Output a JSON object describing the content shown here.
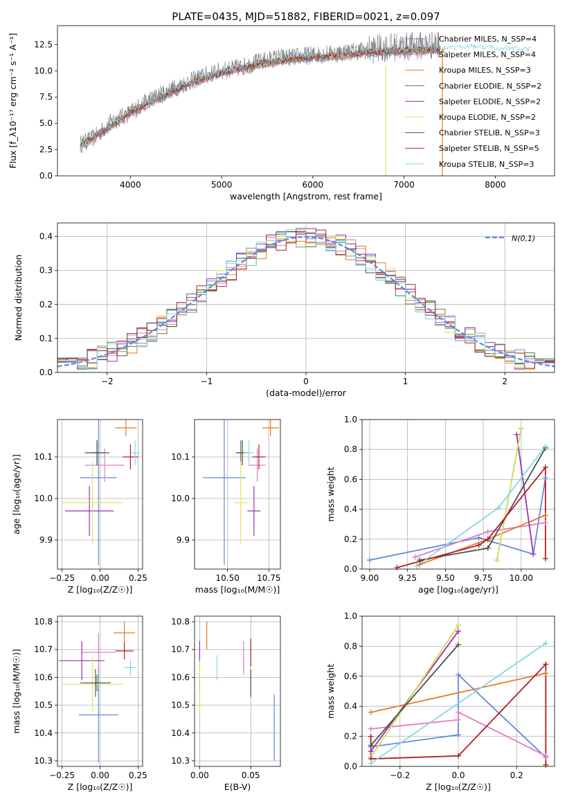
{
  "chart_data": [
    {
      "id": "spectrum",
      "type": "line",
      "title": "PLATE=0435, MJD=51882, FIBERID=0021, z=0.097",
      "xlabel": "wavelength [Angstrom, rest frame]",
      "ylabel": "Flux [f_λ10⁻¹⁷ erg cm⁻² s⁻¹ A⁻¹]",
      "xlim": [
        3200,
        8650
      ],
      "ylim": [
        0,
        14.3
      ],
      "xticks": [
        4000,
        5000,
        6000,
        7000,
        8000
      ],
      "yticks": [
        0.0,
        2.5,
        5.0,
        7.5,
        10.0,
        12.5
      ],
      "legend_position": "top-right",
      "observed": {
        "color": "#808080",
        "x": [
          3450,
          3600,
          3800,
          4000,
          4200,
          4400,
          4600,
          4800,
          5000,
          5200,
          5400,
          5600,
          5800,
          6000,
          6200,
          6400,
          6600,
          6800,
          7000,
          7200,
          7400
        ],
        "y": [
          3.0,
          3.6,
          5.2,
          6.0,
          7.2,
          8.0,
          8.8,
          9.5,
          10.0,
          10.3,
          10.8,
          11.2,
          11.3,
          11.5,
          11.6,
          11.8,
          12.0,
          12.2,
          12.3,
          12.4,
          12.5
        ]
      },
      "series": [
        {
          "name": "Chabrier MILES, N_SSP=4",
          "color": "#6189da",
          "n_ssp": 4
        },
        {
          "name": "Salpeter MILES, N_SSP=4",
          "color": "#e37bbd",
          "n_ssp": 4
        },
        {
          "name": "Kroupa MILES, N_SSP=3",
          "color": "#e07b22",
          "n_ssp": 3
        },
        {
          "name": "Chabrier ELODIE, N_SSP=2",
          "color": "#4e7a42",
          "n_ssp": 2
        },
        {
          "name": "Salpeter ELODIE, N_SSP=2",
          "color": "#9b2fae",
          "n_ssp": 2
        },
        {
          "name": "Kroupa ELODIE, N_SSP=2",
          "color": "#dbe65a",
          "n_ssp": 2
        },
        {
          "name": "Chabrier STELIB, N_SSP=3",
          "color": "#4d4d4d",
          "n_ssp": 3
        },
        {
          "name": "Salpeter STELIB, N_SSP=5",
          "color": "#b01e22",
          "n_ssp": 5
        },
        {
          "name": "Kroupa STELIB, N_SSP=3",
          "color": "#7fd8e3",
          "n_ssp": 3
        }
      ],
      "continuum": {
        "x": [
          3450,
          3700,
          4000,
          4300,
          4600,
          5000,
          5400,
          5800,
          6200,
          6600,
          7000,
          7400,
          7800,
          8200,
          8400
        ],
        "y": [
          3.0,
          4.2,
          6.0,
          7.3,
          8.6,
          9.8,
          10.6,
          11.1,
          11.4,
          11.7,
          11.9,
          12.0,
          12.1,
          11.9,
          11.8
        ]
      }
    },
    {
      "id": "residuals",
      "type": "histogram",
      "xlabel": "(data-model)/error",
      "ylabel": "Normed distribution",
      "xlim": [
        -2.5,
        2.5
      ],
      "ylim": [
        0,
        0.44
      ],
      "xticks": [
        -2,
        -1,
        0,
        1,
        2
      ],
      "yticks": [
        0.0,
        0.1,
        0.2,
        0.3,
        0.4
      ],
      "grid": true,
      "bin_width": 0.1,
      "legend": "N(0,1)",
      "legend_position": "top-right",
      "gaussian": {
        "mean": 0,
        "sigma": 1,
        "color": "#6189da"
      }
    },
    {
      "id": "age-vs-Z",
      "type": "errorbar",
      "xlabel": "Z [log₁₀(Z/Z☉)]",
      "ylabel": "age  [log₁₀(age/yr)]",
      "xlim": [
        -0.28,
        0.28
      ],
      "ylim": [
        9.83,
        10.19
      ],
      "xticks": [
        -0.25,
        0.0,
        0.25
      ],
      "yticks": [
        9.9,
        10.0,
        10.1
      ],
      "grid": true,
      "points": [
        {
          "color": "#6189da",
          "x": -0.01,
          "xerr": 0.12,
          "y": 10.05,
          "yerr": 0.21
        },
        {
          "color": "#e37bbd",
          "x": 0.03,
          "xerr": 0.13,
          "y": 10.08,
          "yerr": 0.04
        },
        {
          "color": "#e07b22",
          "x": 0.17,
          "xerr": 0.07,
          "y": 10.17,
          "yerr": 0.02
        },
        {
          "color": "#4e7a42",
          "x": -0.02,
          "xerr": 0.04,
          "y": 10.11,
          "yerr": 0.03
        },
        {
          "color": "#9b2fae",
          "x": -0.07,
          "xerr": 0.16,
          "y": 9.97,
          "yerr": 0.06
        },
        {
          "color": "#dbe65a",
          "x": -0.05,
          "xerr": 0.2,
          "y": 9.99,
          "yerr": 0.1
        },
        {
          "color": "#4d4d4d",
          "x": -0.02,
          "xerr": 0.08,
          "y": 10.11,
          "yerr": 0.03
        },
        {
          "color": "#b01e22",
          "x": 0.2,
          "xerr": 0.05,
          "y": 10.1,
          "yerr": 0.03
        },
        {
          "color": "#7fd8e3",
          "x": 0.23,
          "xerr": 0.03,
          "y": 10.11,
          "yerr": 0.03
        }
      ]
    },
    {
      "id": "age-vs-mass",
      "type": "errorbar",
      "xlabel": "mass [log₁₀(M/M☉)]",
      "ylabel": "",
      "xlim": [
        10.3,
        10.82
      ],
      "ylim": [
        9.83,
        10.19
      ],
      "xticks": [
        10.5,
        10.75
      ],
      "yticks": [
        9.9,
        10.0,
        10.1
      ],
      "grid": true,
      "points": [
        {
          "color": "#6189da",
          "x": 10.48,
          "xerr": 0.13,
          "y": 10.05,
          "yerr": 0.21
        },
        {
          "color": "#e37bbd",
          "x": 10.68,
          "xerr": 0.05,
          "y": 10.08,
          "yerr": 0.04
        },
        {
          "color": "#e07b22",
          "x": 10.76,
          "xerr": 0.05,
          "y": 10.17,
          "yerr": 0.02
        },
        {
          "color": "#4e7a42",
          "x": 10.58,
          "xerr": 0.02,
          "y": 10.11,
          "yerr": 0.03
        },
        {
          "color": "#9b2fae",
          "x": 10.66,
          "xerr": 0.04,
          "y": 9.97,
          "yerr": 0.06
        },
        {
          "color": "#dbe65a",
          "x": 10.58,
          "xerr": 0.04,
          "y": 9.99,
          "yerr": 0.1
        },
        {
          "color": "#4d4d4d",
          "x": 10.59,
          "xerr": 0.04,
          "y": 10.11,
          "yerr": 0.03
        },
        {
          "color": "#b01e22",
          "x": 10.69,
          "xerr": 0.04,
          "y": 10.1,
          "yerr": 0.03
        },
        {
          "color": "#7fd8e3",
          "x": 10.63,
          "xerr": 0.03,
          "y": 10.11,
          "yerr": 0.03
        }
      ]
    },
    {
      "id": "weight-vs-age",
      "type": "line",
      "xlabel": "age  [log₁₀(age/yr)]",
      "ylabel": "mass weight",
      "xlim": [
        8.95,
        10.22
      ],
      "ylim": [
        0,
        1.0
      ],
      "xticks": [
        9.0,
        9.25,
        9.5,
        9.75,
        10.0
      ],
      "yticks": [
        0.0,
        0.2,
        0.4,
        0.6,
        0.8,
        1.0
      ],
      "grid": true,
      "series": [
        {
          "color": "#6189da",
          "x": [
            9.0,
            9.72,
            10.08,
            10.16
          ],
          "y": [
            0.06,
            0.21,
            0.1,
            0.61
          ]
        },
        {
          "color": "#e37bbd",
          "x": [
            9.3,
            9.78,
            10.16
          ],
          "y": [
            0.08,
            0.25,
            0.31
          ]
        },
        {
          "color": "#e07b22",
          "x": [
            9.33,
            9.78,
            10.16
          ],
          "y": [
            0.03,
            0.2,
            0.36
          ]
        },
        {
          "color": "#4e7a42",
          "x": [
            9.84,
            10.0
          ],
          "y": [
            0.06,
            0.94
          ]
        },
        {
          "color": "#9b2fae",
          "x": [
            9.97,
            10.08
          ],
          "y": [
            0.9,
            0.1
          ]
        },
        {
          "color": "#dbe65a",
          "x": [
            9.84,
            10.0
          ],
          "y": [
            0.06,
            0.94
          ]
        },
        {
          "color": "#4d4d4d",
          "x": [
            9.33,
            9.78,
            10.16
          ],
          "y": [
            0.06,
            0.14,
            0.81
          ]
        },
        {
          "color": "#b01e22",
          "x": [
            9.18,
            9.72,
            9.78,
            10.16,
            10.16
          ],
          "y": [
            0.01,
            0.16,
            0.2,
            0.68,
            0.07
          ]
        },
        {
          "color": "#7fd8e3",
          "x": [
            9.31,
            9.85,
            10.16
          ],
          "y": [
            0.02,
            0.41,
            0.82
          ]
        }
      ]
    },
    {
      "id": "mass-vs-Z",
      "type": "errorbar",
      "xlabel": "Z [log₁₀(Z/Z☉)]",
      "ylabel": "mass [log₁₀(M/M☉)]",
      "xlim": [
        -0.28,
        0.28
      ],
      "ylim": [
        10.28,
        10.82
      ],
      "xticks": [
        -0.25,
        0.0,
        0.25
      ],
      "yticks": [
        10.3,
        10.4,
        10.5,
        10.6,
        10.7,
        10.8
      ],
      "grid": true,
      "points": [
        {
          "color": "#6189da",
          "x": -0.01,
          "xerr": 0.13,
          "y": 10.465,
          "yerr": 0.17
        },
        {
          "color": "#e37bbd",
          "x": -0.01,
          "xerr": 0.11,
          "y": 10.69,
          "yerr": 0.07
        },
        {
          "color": "#e07b22",
          "x": 0.16,
          "xerr": 0.07,
          "y": 10.76,
          "yerr": 0.04
        },
        {
          "color": "#4e7a42",
          "x": -0.02,
          "xerr": 0.03,
          "y": 10.58,
          "yerr": 0.03
        },
        {
          "color": "#9b2fae",
          "x": -0.12,
          "xerr": 0.15,
          "y": 10.66,
          "yerr": 0.07
        },
        {
          "color": "#dbe65a",
          "x": -0.05,
          "xerr": 0.2,
          "y": 10.575,
          "yerr": 0.1
        },
        {
          "color": "#4d4d4d",
          "x": -0.03,
          "xerr": 0.1,
          "y": 10.58,
          "yerr": 0.05
        },
        {
          "color": "#b01e22",
          "x": 0.16,
          "xerr": 0.06,
          "y": 10.695,
          "yerr": 0.03
        },
        {
          "color": "#7fd8e3",
          "x": 0.2,
          "xerr": 0.04,
          "y": 10.635,
          "yerr": 0.03
        }
      ]
    },
    {
      "id": "mass-vs-ebv",
      "type": "errorbar",
      "xlabel": "E(B-V)",
      "ylabel": "",
      "xlim": [
        -0.005,
        0.079
      ],
      "ylim": [
        10.28,
        10.82
      ],
      "xticks": [
        0.0,
        0.05
      ],
      "yticks": [
        10.3,
        10.4,
        10.5,
        10.6,
        10.7,
        10.8
      ],
      "grid": true,
      "points": [
        {
          "color": "#6189da",
          "x": 0.073,
          "xerr": 0,
          "y": 10.42,
          "yerr": 0.12
        },
        {
          "color": "#e37bbd",
          "x": 0.043,
          "xerr": 0,
          "y": 10.67,
          "yerr": 0.06
        },
        {
          "color": "#e07b22",
          "x": 0.007,
          "xerr": 0,
          "y": 10.75,
          "yerr": 0.05
        },
        {
          "color": "#4e7a42",
          "x": 0.0,
          "xerr": 0,
          "y": 10.58,
          "yerr": 0.03
        },
        {
          "color": "#9b2fae",
          "x": 0.0,
          "xerr": 0,
          "y": 10.68,
          "yerr": 0.05
        },
        {
          "color": "#dbe65a",
          "x": 0.0,
          "xerr": 0,
          "y": 10.57,
          "yerr": 0.09
        },
        {
          "color": "#4d4d4d",
          "x": 0.05,
          "xerr": 0,
          "y": 10.58,
          "yerr": 0.05
        },
        {
          "color": "#b01e22",
          "x": 0.05,
          "xerr": 0,
          "y": 10.69,
          "yerr": 0.05
        },
        {
          "color": "#7fd8e3",
          "x": 0.017,
          "xerr": 0,
          "y": 10.635,
          "yerr": 0.045
        }
      ]
    },
    {
      "id": "weight-vs-Z",
      "type": "line",
      "xlabel": "Z [log₁₀(Z/Z☉)]",
      "ylabel": "mass weight",
      "xlim": [
        -0.33,
        0.33
      ],
      "ylim": [
        0,
        1.0
      ],
      "xticks": [
        -0.2,
        0.0,
        0.2
      ],
      "yticks": [
        0.0,
        0.2,
        0.4,
        0.6,
        0.8,
        1.0
      ],
      "grid": true,
      "series": [
        {
          "color": "#6189da",
          "x": [
            -0.3,
            0.0,
            0.0,
            0.3
          ],
          "y": [
            0.13,
            0.21,
            0.61,
            0.06
          ]
        },
        {
          "color": "#e37bbd",
          "x": [
            -0.3,
            0.0,
            0.0,
            0.3
          ],
          "y": [
            0.25,
            0.31,
            0.36,
            0.07
          ]
        },
        {
          "color": "#e07b22",
          "x": [
            -0.3,
            0.3
          ],
          "y": [
            0.36,
            0.62
          ]
        },
        {
          "color": "#4e7a42",
          "x": [
            -0.3,
            0.0
          ],
          "y": [
            0.06,
            0.94
          ]
        },
        {
          "color": "#9b2fae",
          "x": [
            -0.3,
            0.0
          ],
          "y": [
            0.1,
            0.9
          ]
        },
        {
          "color": "#dbe65a",
          "x": [
            -0.3,
            0.0
          ],
          "y": [
            0.06,
            0.94
          ]
        },
        {
          "color": "#4d4d4d",
          "x": [
            -0.3,
            0.0
          ],
          "y": [
            0.14,
            0.81
          ]
        },
        {
          "color": "#b01e22",
          "x": [
            -0.3,
            -0.3,
            0.0,
            0.3,
            0.3
          ],
          "y": [
            0.2,
            0.05,
            0.07,
            0.68,
            0.01
          ]
        },
        {
          "color": "#7fd8e3",
          "x": [
            -0.3,
            0.3
          ],
          "y": [
            0.02,
            0.82
          ]
        }
      ]
    }
  ]
}
